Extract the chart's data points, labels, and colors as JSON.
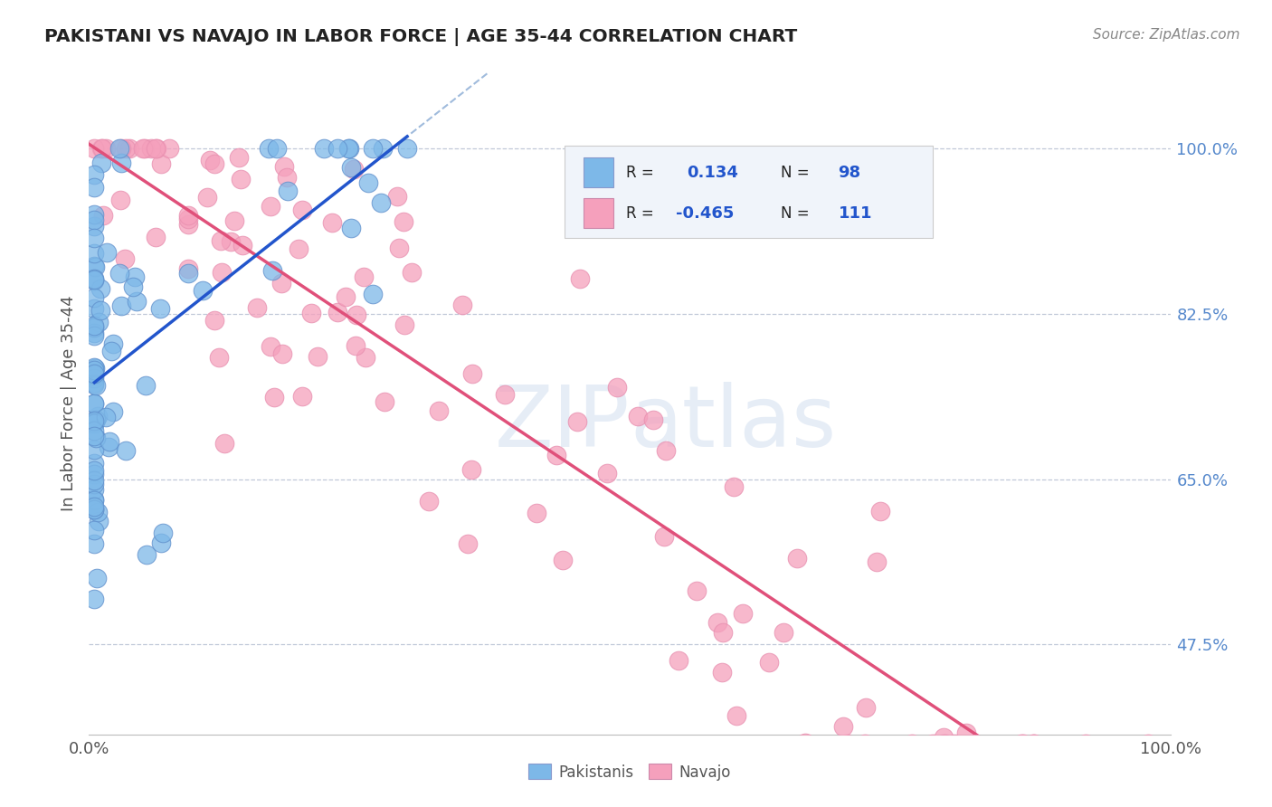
{
  "title": "PAKISTANI VS NAVAJO IN LABOR FORCE | AGE 35-44 CORRELATION CHART",
  "source": "Source: ZipAtlas.com",
  "ylabel": "In Labor Force | Age 35-44",
  "xlim": [
    0.0,
    1.0
  ],
  "ylim": [
    0.38,
    1.08
  ],
  "ytick_vals": [
    0.475,
    0.65,
    0.825,
    1.0
  ],
  "ytick_labels": [
    "47.5%",
    "65.0%",
    "82.5%",
    "100.0%"
  ],
  "r_pakistani": 0.134,
  "n_pakistani": 98,
  "r_navajo": -0.465,
  "n_navajo": 111,
  "pak_color": "#7db8e8",
  "nav_color": "#f5a0bc",
  "pak_line_color": "#2255cc",
  "nav_line_color": "#e0507a",
  "pak_dashed_color": "#88aad4",
  "watermark": "ZIPatlas",
  "tick_color": "#5588cc",
  "legend_text_color": "#222222",
  "legend_num_color": "#3366cc"
}
